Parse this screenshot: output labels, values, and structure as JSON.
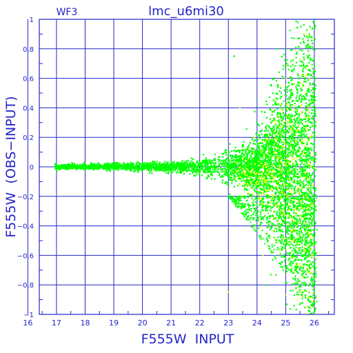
{
  "chart_data": {
    "type": "scatter",
    "title": "lmc_u6mi30",
    "corner_label": "WF3",
    "xlabel": "F555W  INPUT",
    "ylabel": "F555W  (OBS−INPUT)",
    "xlim": [
      16.4,
      26.7
    ],
    "ylim": [
      -1,
      1
    ],
    "grid": true,
    "x_ticks": [
      "16",
      "17",
      "18",
      "19",
      "20",
      "21",
      "22",
      "23",
      "24",
      "25",
      "26"
    ],
    "x_tick_values": [
      16,
      17,
      18,
      19,
      20,
      21,
      22,
      23,
      24,
      25,
      26
    ],
    "y_ticks": [
      "1",
      "0.8",
      "0.6",
      "0.4",
      "0.2",
      "0",
      "−0.2",
      "−0.4",
      "−0.6",
      "−0.8",
      "−1"
    ],
    "y_tick_values": [
      1,
      0.8,
      0.6,
      0.4,
      0.2,
      0,
      -0.2,
      -0.4,
      -0.6,
      -0.8,
      -1
    ],
    "colors": {
      "axis": "#2323c8",
      "grid": "#2323c8",
      "series_main": "#00ff00",
      "series_secondary": "#ffff00"
    },
    "series": [
      {
        "color": "#00ff00",
        "description_points": [
          [
            17.0,
            0.0
          ],
          [
            17.5,
            0.01
          ],
          [
            18.0,
            -0.01
          ],
          [
            18.5,
            0.0
          ],
          [
            19.0,
            0.01
          ],
          [
            19.5,
            -0.01
          ],
          [
            20.0,
            0.0
          ],
          [
            20.5,
            0.02
          ],
          [
            21.0,
            -0.02
          ],
          [
            21.5,
            0.03
          ],
          [
            22.0,
            -0.03
          ],
          [
            22.5,
            0.05
          ],
          [
            23.0,
            -0.07
          ],
          [
            23.2,
            0.75
          ],
          [
            23.5,
            0.15
          ],
          [
            23.8,
            -0.2
          ],
          [
            24.0,
            0.3
          ],
          [
            24.2,
            -0.35
          ],
          [
            24.5,
            0.55
          ],
          [
            24.6,
            0.6
          ],
          [
            24.8,
            -0.5
          ],
          [
            25.0,
            0.4
          ],
          [
            25.2,
            -0.7
          ],
          [
            25.5,
            -0.8
          ],
          [
            25.8,
            -0.95
          ],
          [
            26.0,
            -0.98
          ]
        ]
      },
      {
        "color": "#ffff00",
        "description_points": [
          [
            23.0,
            -0.85
          ],
          [
            23.4,
            0.4
          ],
          [
            23.9,
            0.2
          ],
          [
            24.2,
            -0.6
          ],
          [
            24.6,
            0.1
          ],
          [
            24.9,
            -0.3
          ],
          [
            25.2,
            -0.5
          ],
          [
            25.4,
            -0.9
          ],
          [
            25.6,
            -0.75
          ],
          [
            25.9,
            -0.95
          ]
        ]
      }
    ]
  }
}
